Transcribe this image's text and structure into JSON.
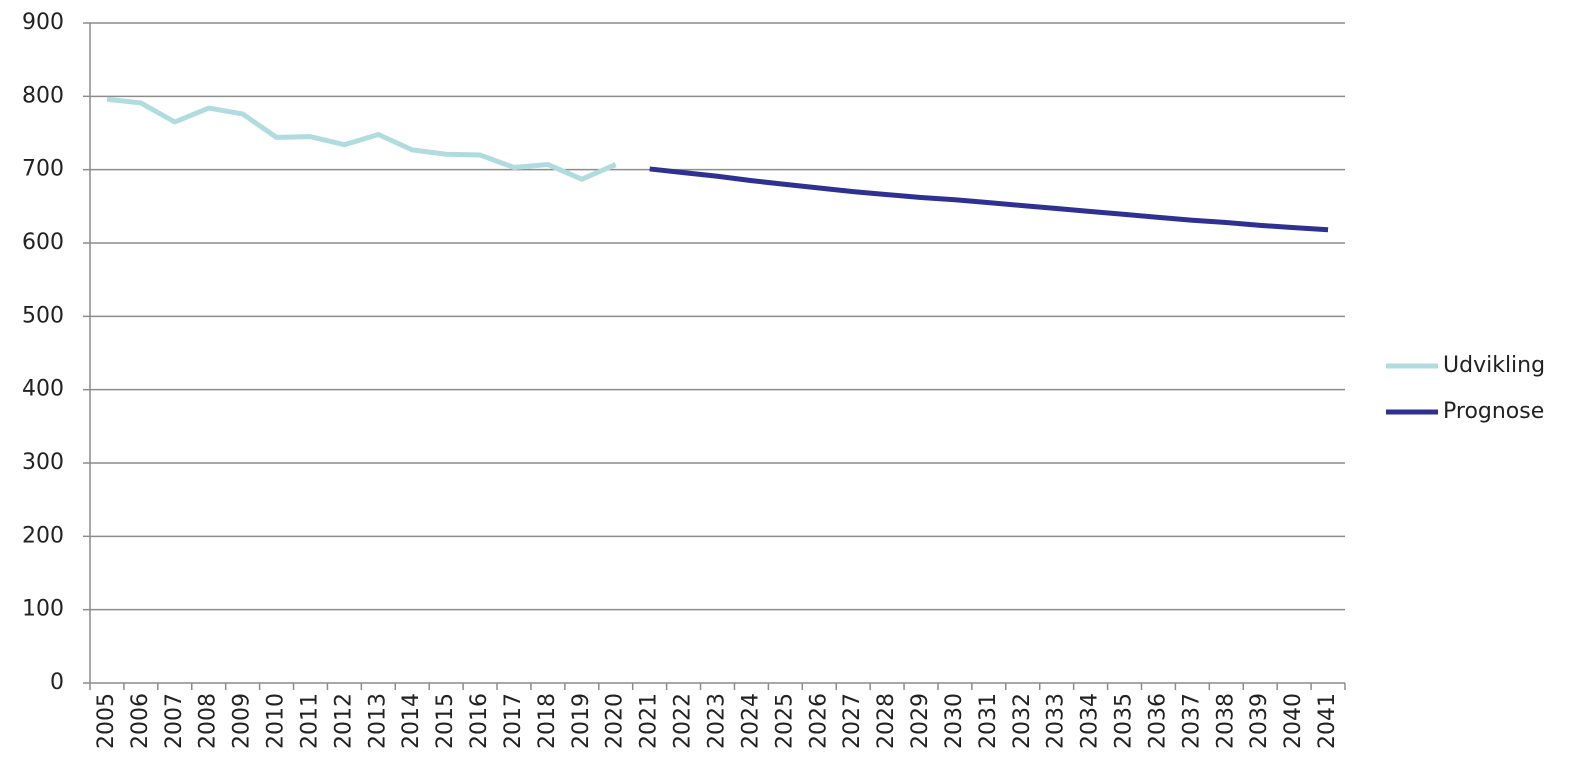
{
  "chart_data": {
    "type": "line",
    "categories": [
      "2005",
      "2006",
      "2007",
      "2008",
      "2009",
      "2010",
      "2011",
      "2012",
      "2013",
      "2014",
      "2015",
      "2016",
      "2017",
      "2018",
      "2019",
      "2020",
      "2021",
      "2022",
      "2023",
      "2024",
      "2025",
      "2026",
      "2027",
      "2028",
      "2029",
      "2030",
      "2031",
      "2032",
      "2033",
      "2034",
      "2035",
      "2036",
      "2037",
      "2038",
      "2039",
      "2040",
      "2041"
    ],
    "series": [
      {
        "name": "Udvikling",
        "color": "#b0dce0",
        "values": [
          796,
          791,
          765,
          784,
          776,
          744,
          745,
          734,
          748,
          727,
          721,
          720,
          703,
          707,
          687,
          707,
          null,
          null,
          null,
          null,
          null,
          null,
          null,
          null,
          null,
          null,
          null,
          null,
          null,
          null,
          null,
          null,
          null,
          null,
          null,
          null,
          null
        ]
      },
      {
        "name": "Prognose",
        "color": "#2e3192",
        "values": [
          null,
          null,
          null,
          null,
          null,
          null,
          null,
          null,
          null,
          null,
          null,
          null,
          null,
          null,
          null,
          null,
          701,
          696,
          691,
          685,
          680,
          675,
          670,
          666,
          662,
          659,
          655,
          651,
          647,
          643,
          639,
          635,
          631,
          628,
          624,
          621,
          618
        ]
      }
    ],
    "ylim": [
      0,
      900
    ],
    "yticks": [
      0,
      100,
      200,
      300,
      400,
      500,
      600,
      700,
      800,
      900
    ],
    "grid": true,
    "legend": "right"
  }
}
